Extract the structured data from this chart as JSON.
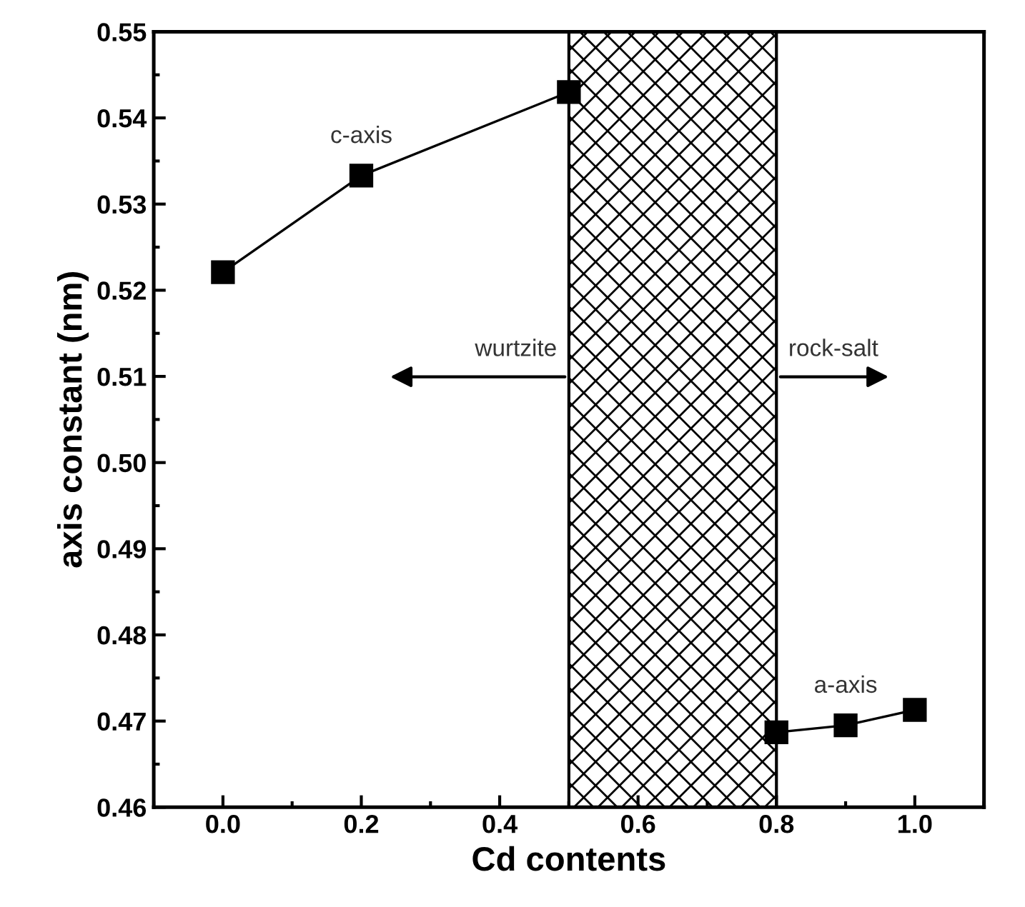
{
  "chart_data": {
    "type": "line",
    "xlabel": "Cd contents",
    "ylabel": "axis constant (nm)",
    "series": [
      {
        "name": "c-axis",
        "color": "#000000",
        "x": [
          0.0,
          0.2,
          0.5
        ],
        "values": [
          0.5221,
          0.5333,
          0.543
        ]
      },
      {
        "name": "a-axis",
        "color": "#000000",
        "x": [
          0.8,
          0.9,
          1.0
        ],
        "values": [
          0.4687,
          0.4695,
          0.4713
        ]
      }
    ],
    "xlim": [
      -0.1,
      1.1
    ],
    "xticks": [
      {
        "value": 0,
        "label": "0.0"
      },
      0.2,
      0.4,
      0.6,
      0.8,
      {
        "value": 1,
        "label": "1.0"
      }
    ],
    "ylim": [
      0.46,
      0.55
    ],
    "yticks": [
      0.46,
      0.47,
      0.48,
      0.49,
      {
        "value": 0.5,
        "label": "0.50"
      },
      0.51,
      0.52,
      0.53,
      0.54,
      0.55
    ],
    "bands": [
      {
        "axis": "x",
        "from": 0.5,
        "to": 0.8
      }
    ],
    "annotations": [
      "wurtzite",
      "rock-salt"
    ],
    "marker": "square",
    "line_style": "solid",
    "grid": false,
    "legend": false
  }
}
